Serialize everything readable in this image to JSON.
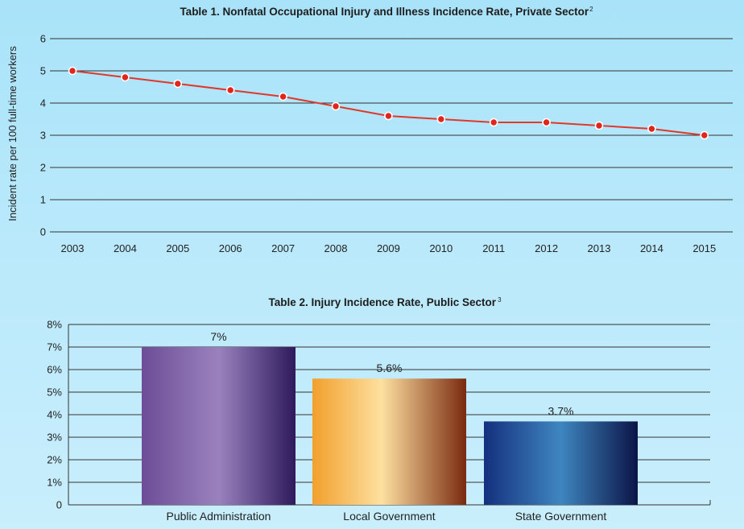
{
  "chart_data": [
    {
      "type": "line",
      "title": "Table 1. Nonfatal Occupational Injury and Illness Incidence Rate, Private Sector",
      "title_superscript": "2",
      "xlabel": "",
      "ylabel": "Incident rate per 100 full-time workers",
      "x": [
        "2003",
        "2004",
        "2005",
        "2006",
        "2007",
        "2008",
        "2009",
        "2010",
        "2011",
        "2012",
        "2013",
        "2014",
        "2015"
      ],
      "series": [
        {
          "values": [
            5.0,
            4.8,
            4.6,
            4.4,
            4.2,
            3.9,
            3.6,
            3.5,
            3.4,
            3.4,
            3.3,
            3.2,
            3.0
          ]
        }
      ],
      "ylim": [
        0,
        6
      ],
      "yticks": [
        "0",
        "1",
        "2",
        "3",
        "4",
        "5",
        "6"
      ],
      "grid": true,
      "colors": {
        "line": "#e0382a",
        "marker": "#e0261c",
        "marker_outline": "#ffffff",
        "grid": "#333333"
      }
    },
    {
      "type": "bar",
      "title": "Table 2. Injury Incidence Rate, Public Sector",
      "title_superscript": "3",
      "categories": [
        "Public Administration",
        "Local Government",
        "State Government"
      ],
      "values": [
        7,
        5.6,
        3.7
      ],
      "data_labels": [
        "7%",
        "5.6%",
        "3.7%"
      ],
      "xlabel": "",
      "ylabel": "",
      "ylim": [
        0,
        8
      ],
      "yticks": [
        "0",
        "1%",
        "2%",
        "3%",
        "4%",
        "5%",
        "6%",
        "7%",
        "8%"
      ],
      "grid": true,
      "colors": {
        "public_administration": [
          "#6c4d96",
          "#9a82be",
          "#2e1a5c"
        ],
        "local_government": [
          "#f2a02c",
          "#fde0a0",
          "#7a2a10"
        ],
        "state_government": [
          "#15307e",
          "#3f86c0",
          "#0b1446"
        ]
      }
    }
  ]
}
